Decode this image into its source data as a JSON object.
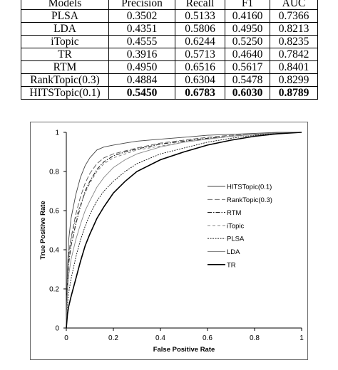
{
  "table": {
    "headers": [
      "Models",
      "Precision",
      "Recall",
      "F1",
      "AUC"
    ],
    "rows": [
      {
        "model": "PLSA",
        "values": [
          "0.3502",
          "0.5133",
          "0.4160",
          "0.7366"
        ],
        "bold": false
      },
      {
        "model": "LDA",
        "values": [
          "0.4351",
          "0.5806",
          "0.4950",
          "0.8213"
        ],
        "bold": false
      },
      {
        "model": "iTopic",
        "values": [
          "0.4555",
          "0.6244",
          "0.5250",
          "0.8235"
        ],
        "bold": false
      },
      {
        "model": "TR",
        "values": [
          "0.3916",
          "0.5713",
          "0.4640",
          "0.7842"
        ],
        "bold": false
      },
      {
        "model": "RTM",
        "values": [
          "0.4950",
          "0.6516",
          "0.5617",
          "0.8401"
        ],
        "bold": false
      },
      {
        "model": "RankTopic(0.3)",
        "values": [
          "0.4884",
          "0.6304",
          "0.5478",
          "0.8299"
        ],
        "bold": false
      },
      {
        "model": "HITSTopic(0.1)",
        "values": [
          "0.5450",
          "0.6783",
          "0.6030",
          "0.8789"
        ],
        "bold": true
      }
    ]
  },
  "chart_data": {
    "type": "line",
    "xlabel": "False Positive Rate",
    "ylabel": "True Positive Rate",
    "xlim": [
      0,
      1
    ],
    "ylim": [
      0,
      1
    ],
    "xticks": [
      "0",
      "0.2",
      "0.4",
      "0.6",
      "0.8",
      "1"
    ],
    "yticks": [
      "0",
      "0.2",
      "0.4",
      "0.6",
      "0.8",
      "1"
    ],
    "grid": false,
    "legend_position": "center-right",
    "series": [
      {
        "name": "HITSTopic(0.1)",
        "color": "#444444",
        "dash": "",
        "width": 0.9,
        "points": [
          [
            0,
            0
          ],
          [
            0.005,
            0.3
          ],
          [
            0.01,
            0.45
          ],
          [
            0.02,
            0.56
          ],
          [
            0.04,
            0.68
          ],
          [
            0.06,
            0.77
          ],
          [
            0.08,
            0.83
          ],
          [
            0.1,
            0.87
          ],
          [
            0.13,
            0.91
          ],
          [
            0.16,
            0.925
          ],
          [
            0.2,
            0.935
          ],
          [
            0.25,
            0.945
          ],
          [
            0.3,
            0.955
          ],
          [
            0.4,
            0.965
          ],
          [
            0.5,
            0.975
          ],
          [
            0.6,
            0.985
          ],
          [
            0.7,
            0.99
          ],
          [
            0.8,
            0.995
          ],
          [
            0.9,
            1.0
          ],
          [
            1.0,
            1.0
          ]
        ]
      },
      {
        "name": "RankTopic(0.3)",
        "color": "#555555",
        "dash": "7,3",
        "width": 0.9,
        "points": [
          [
            0,
            0
          ],
          [
            0.005,
            0.25
          ],
          [
            0.01,
            0.38
          ],
          [
            0.02,
            0.46
          ],
          [
            0.04,
            0.58
          ],
          [
            0.06,
            0.67
          ],
          [
            0.08,
            0.74
          ],
          [
            0.1,
            0.79
          ],
          [
            0.13,
            0.84
          ],
          [
            0.16,
            0.87
          ],
          [
            0.2,
            0.89
          ],
          [
            0.25,
            0.905
          ],
          [
            0.3,
            0.92
          ],
          [
            0.4,
            0.945
          ],
          [
            0.5,
            0.96
          ],
          [
            0.6,
            0.975
          ],
          [
            0.7,
            0.985
          ],
          [
            0.8,
            0.99
          ],
          [
            0.9,
            0.997
          ],
          [
            1.0,
            1.0
          ]
        ]
      },
      {
        "name": "RTM",
        "color": "#222222",
        "dash": "6,2,1.5,2",
        "width": 1.1,
        "points": [
          [
            0,
            0
          ],
          [
            0.005,
            0.22
          ],
          [
            0.01,
            0.33
          ],
          [
            0.02,
            0.42
          ],
          [
            0.04,
            0.53
          ],
          [
            0.06,
            0.62
          ],
          [
            0.08,
            0.7
          ],
          [
            0.1,
            0.75
          ],
          [
            0.13,
            0.81
          ],
          [
            0.16,
            0.85
          ],
          [
            0.2,
            0.88
          ],
          [
            0.25,
            0.9
          ],
          [
            0.3,
            0.915
          ],
          [
            0.4,
            0.94
          ],
          [
            0.5,
            0.955
          ],
          [
            0.6,
            0.97
          ],
          [
            0.7,
            0.98
          ],
          [
            0.8,
            0.99
          ],
          [
            0.9,
            0.996
          ],
          [
            1.0,
            1.0
          ]
        ]
      },
      {
        "name": "iTopic",
        "color": "#777777",
        "dash": "4,3",
        "width": 0.9,
        "points": [
          [
            0,
            0
          ],
          [
            0.005,
            0.24
          ],
          [
            0.01,
            0.35
          ],
          [
            0.02,
            0.45
          ],
          [
            0.04,
            0.56
          ],
          [
            0.06,
            0.63
          ],
          [
            0.08,
            0.69
          ],
          [
            0.1,
            0.74
          ],
          [
            0.13,
            0.8
          ],
          [
            0.16,
            0.84
          ],
          [
            0.2,
            0.87
          ],
          [
            0.25,
            0.89
          ],
          [
            0.3,
            0.91
          ],
          [
            0.4,
            0.93
          ],
          [
            0.5,
            0.95
          ],
          [
            0.6,
            0.965
          ],
          [
            0.7,
            0.98
          ],
          [
            0.8,
            0.99
          ],
          [
            0.9,
            0.997
          ],
          [
            1.0,
            1.0
          ]
        ]
      },
      {
        "name": "PLSA",
        "color": "#111111",
        "dash": "2,1.5",
        "width": 0.9,
        "points": [
          [
            0,
            0
          ],
          [
            0.005,
            0.12
          ],
          [
            0.01,
            0.18
          ],
          [
            0.02,
            0.25
          ],
          [
            0.04,
            0.36
          ],
          [
            0.06,
            0.45
          ],
          [
            0.08,
            0.52
          ],
          [
            0.1,
            0.58
          ],
          [
            0.13,
            0.65
          ],
          [
            0.16,
            0.7
          ],
          [
            0.2,
            0.75
          ],
          [
            0.25,
            0.8
          ],
          [
            0.3,
            0.84
          ],
          [
            0.4,
            0.89
          ],
          [
            0.5,
            0.92
          ],
          [
            0.6,
            0.95
          ],
          [
            0.7,
            0.97
          ],
          [
            0.8,
            0.985
          ],
          [
            0.9,
            0.995
          ],
          [
            1.0,
            1.0
          ]
        ]
      },
      {
        "name": "LDA",
        "color": "#888888",
        "dash": "",
        "width": 0.9,
        "points": [
          [
            0,
            0
          ],
          [
            0.005,
            0.18
          ],
          [
            0.01,
            0.27
          ],
          [
            0.02,
            0.35
          ],
          [
            0.04,
            0.45
          ],
          [
            0.06,
            0.53
          ],
          [
            0.08,
            0.6
          ],
          [
            0.1,
            0.65
          ],
          [
            0.13,
            0.72
          ],
          [
            0.16,
            0.77
          ],
          [
            0.2,
            0.82
          ],
          [
            0.25,
            0.86
          ],
          [
            0.3,
            0.89
          ],
          [
            0.4,
            0.925
          ],
          [
            0.5,
            0.95
          ],
          [
            0.6,
            0.965
          ],
          [
            0.7,
            0.98
          ],
          [
            0.8,
            0.99
          ],
          [
            0.9,
            0.997
          ],
          [
            1.0,
            1.0
          ]
        ]
      },
      {
        "name": "TR",
        "color": "#000000",
        "dash": "",
        "width": 1.6,
        "points": [
          [
            0,
            0
          ],
          [
            0.005,
            0.07
          ],
          [
            0.01,
            0.11
          ],
          [
            0.02,
            0.16
          ],
          [
            0.04,
            0.25
          ],
          [
            0.06,
            0.34
          ],
          [
            0.08,
            0.42
          ],
          [
            0.1,
            0.48
          ],
          [
            0.13,
            0.56
          ],
          [
            0.16,
            0.62
          ],
          [
            0.2,
            0.69
          ],
          [
            0.25,
            0.75
          ],
          [
            0.3,
            0.8
          ],
          [
            0.4,
            0.86
          ],
          [
            0.5,
            0.9
          ],
          [
            0.6,
            0.935
          ],
          [
            0.7,
            0.96
          ],
          [
            0.8,
            0.98
          ],
          [
            0.9,
            0.993
          ],
          [
            1.0,
            1.0
          ]
        ]
      }
    ]
  }
}
